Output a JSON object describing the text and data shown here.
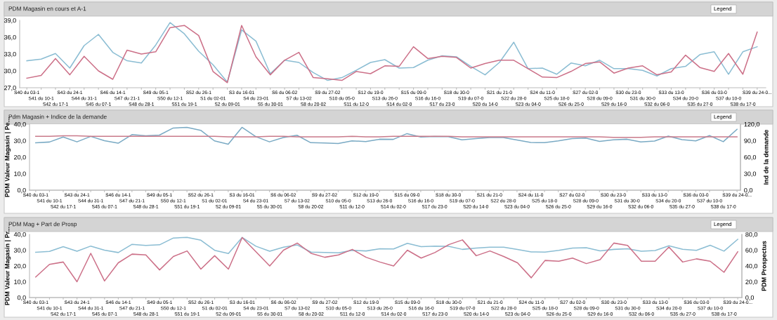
{
  "chart_data": [
    {
      "type": "line",
      "title": "PDM Magasin en cours et A-1",
      "annotations": [
        "Legend"
      ],
      "categories": [
        "S40 du 03-1",
        "S41 du 10-1",
        "S42 du 17-1",
        "S43 du 24-1",
        "S44 du 31-1",
        "S45 du 07-1",
        "S46 du 14-1",
        "S47 du 21-1",
        "S48 du 28-1",
        "S49 du 05-1",
        "S50 du 12-1",
        "S51 du 19-1",
        "S52 du 26-1",
        "S1 du 02-01",
        "S2 du 09-01",
        "S3 du 16-01",
        "S4 du 23-01",
        "S5 du 30-01",
        "S6 du 06-02",
        "S7 du 13-02",
        "S8 du 20-02",
        "S9 du 27-02",
        "S10 du 05-0",
        "S11 du 12-0",
        "S12 du 19-0",
        "S13 du 26-0",
        "S14 du 02-0",
        "S15 du 09-0",
        "S16 du 16-0",
        "S17 du 23-0",
        "S18 du 30-0",
        "S19 du 07-0",
        "S20 du 14-0",
        "S21 du 21-0",
        "S22 du 28-0",
        "S23 du 04-0",
        "S24 du 11-0",
        "S25 du 18-0",
        "S26 du 25-0",
        "S27 du 02-0",
        "S28 du 09-0",
        "S29 du 16-0",
        "S30 du 23-0",
        "S31 du 30-0",
        "S32 du 06-0",
        "S33 du 13-0",
        "S34 du 20-0",
        "S35 du 27-0",
        "S36 du 03-0",
        "S37 du 10-0",
        "S38 du 17-0",
        "S39 du 24-0..."
      ],
      "series": [
        {
          "color": "#8bbdd3",
          "values": [
            31.8,
            32.1,
            33.1,
            30.5,
            34.5,
            36.5,
            33.3,
            31.8,
            31.4,
            34.6,
            38.6,
            36.6,
            33.5,
            31.1,
            28.0,
            37.3,
            35.3,
            29.5,
            31.9,
            31.5,
            29.7,
            28.3,
            28.8,
            30.1,
            31.5,
            32.0,
            30.5,
            30.6,
            31.9,
            32.7,
            32.5,
            30.8,
            29.3,
            31.5,
            35.1,
            30.4,
            30.5,
            29.4,
            31.4,
            30.9,
            31.9,
            30.4,
            30.4,
            30.1,
            29.1,
            30.4,
            30.8,
            32.9,
            33.4,
            29.4,
            33.4,
            34.3
          ]
        },
        {
          "color": "#cc7088",
          "values": [
            28.7,
            29.2,
            32.2,
            29.3,
            32.6,
            30.0,
            28.5,
            33.7,
            33.0,
            33.4,
            37.7,
            38.1,
            36.3,
            29.9,
            27.9,
            38.1,
            32.5,
            29.3,
            31.9,
            33.3,
            28.8,
            28.6,
            28.3,
            29.9,
            29.5,
            30.9,
            30.8,
            34.3,
            32.2,
            32.6,
            32.4,
            30.5,
            31.3,
            31.9,
            31.9,
            30.4,
            28.9,
            28.8,
            29.9,
            31.3,
            31.6,
            29.6,
            30.5,
            30.9,
            29.3,
            29.8,
            32.8,
            30.6,
            29.9,
            33.1,
            29.4,
            36.9
          ]
        }
      ],
      "ylim": [
        27,
        39
      ],
      "yticks": [
        {
          "value": 27,
          "label": "27,0"
        },
        {
          "value": 30,
          "label": "30,0"
        },
        {
          "value": 33,
          "label": "33,0"
        },
        {
          "value": 36,
          "label": "36,0"
        },
        {
          "value": 39,
          "label": "39,0"
        }
      ]
    },
    {
      "type": "line",
      "title": "Pdm Magasin + Indice de la demande",
      "annotations": [
        "Legend"
      ],
      "ylabel": "PDM Valeur Magasin | Pe...",
      "y2label": "Ind de la demande",
      "categories": [
        "S40 du 03-1",
        "S41 du 10-1",
        "S42 du 17-1",
        "S43 du 24-1",
        "S44 du 31-1",
        "S45 du 07-1",
        "S46 du 14-1",
        "S47 du 21-1",
        "S48 du 28-1",
        "S49 du 05-1",
        "S50 du 12-1",
        "S51 du 19-1",
        "S52 du 26-1",
        "S1 du 02-01",
        "S2 du 09-01",
        "S3 du 16-01",
        "S4 du 23-01",
        "S5 du 30-01",
        "S6 du 06-02",
        "S7 du 13-02",
        "S8 du 20-02",
        "S9 du 27-02",
        "S10 du 05-0",
        "S11 du 12-0",
        "S12 du 19-0",
        "S13 du 26-0",
        "S14 du 02-0",
        "S15 du 09-0",
        "S16 du 16-0",
        "S17 du 23-0",
        "S18 du 30-0",
        "S19 du 07-0",
        "S20 du 14-0",
        "S21 du 21-0",
        "S22 du 28-0",
        "S23 du 04-0",
        "S24 du 11-0",
        "S25 du 18-0",
        "S26 du 25-0",
        "S27 du 02-0",
        "S28 du 09-0",
        "S29 du 16-0",
        "S30 du 23-0",
        "S31 du 30-0",
        "S32 du 06-0",
        "S33 du 13-0",
        "S34 du 20-0",
        "S35 du 27-0",
        "S36 du 03-0",
        "S37 du 10-0",
        "S38 du 17-0",
        "S39 du 24-0..."
      ],
      "series": [
        {
          "color": "#7aaac4",
          "values": [
            28.7,
            29.2,
            32.2,
            29.3,
            32.6,
            30.0,
            28.5,
            33.7,
            33.0,
            33.4,
            37.7,
            38.1,
            36.3,
            29.9,
            27.9,
            38.1,
            32.5,
            29.3,
            31.9,
            33.3,
            28.8,
            28.6,
            28.3,
            29.9,
            29.5,
            30.9,
            30.8,
            34.3,
            32.2,
            32.6,
            32.4,
            30.5,
            31.3,
            31.9,
            31.9,
            30.4,
            28.9,
            28.8,
            29.9,
            31.3,
            31.6,
            29.6,
            30.5,
            30.9,
            29.3,
            29.8,
            32.8,
            30.6,
            29.9,
            33.1,
            29.4,
            36.9
          ]
        },
        {
          "color": "#c97a8a",
          "axis": "y2",
          "values": [
            98,
            98,
            99,
            99,
            98,
            98,
            98,
            98,
            98,
            98,
            98,
            98,
            98,
            98,
            97,
            97,
            97,
            98,
            98,
            97,
            97,
            97,
            97,
            98,
            97,
            97,
            98,
            98,
            98,
            98,
            98,
            97,
            97,
            97,
            97,
            97,
            97,
            97,
            97,
            97,
            97,
            97,
            96,
            96,
            96,
            97,
            97,
            97,
            97,
            97,
            97,
            97
          ]
        }
      ],
      "ylim": [
        0,
        40
      ],
      "yticks": [
        {
          "value": 0,
          "label": "0,0"
        },
        {
          "value": 10,
          "label": "10,0"
        },
        {
          "value": 20,
          "label": "20,0"
        },
        {
          "value": 30,
          "label": "30,0"
        },
        {
          "value": 40,
          "label": "40,0"
        }
      ],
      "y2lim": [
        0,
        120
      ],
      "y2ticks": [
        {
          "value": 0,
          "label": "0,0"
        },
        {
          "value": 30,
          "label": "30,0"
        },
        {
          "value": 60,
          "label": "60,0"
        },
        {
          "value": 90,
          "label": "90,0"
        },
        {
          "value": 120,
          "label": "120,0"
        }
      ]
    },
    {
      "type": "line",
      "title": "PDM Mag + Part de Prosp",
      "annotations": [
        "Legend"
      ],
      "ylabel": "PDM Valeur Magasin | Pr...",
      "y2label": "PDM Prospectus",
      "categories": [
        "S40 du 03-1",
        "S41 du 10-1",
        "S42 du 17-1",
        "S43 du 24-1",
        "S44 du 31-1",
        "S45 du 07-1",
        "S46 du 14-1",
        "S47 du 21-1",
        "S48 du 28-1",
        "S49 du 05-1",
        "S50 du 12-1",
        "S51 du 19-1",
        "S52 du 26-1",
        "S1 du 02-01",
        "S2 du 09-01",
        "S3 du 16-01",
        "S4 du 23-01",
        "S5 du 30-01",
        "S6 du 06-02",
        "S7 du 13-02",
        "S8 du 20-02",
        "S9 du 27-02",
        "S10 du 05-0",
        "S11 du 12-0",
        "S12 du 19-0",
        "S13 du 26-0",
        "S14 du 02-0",
        "S15 du 09-0",
        "S16 du 16-0",
        "S17 du 23-0",
        "S18 du 30-0",
        "S19 du 07-0",
        "S20 du 14-0",
        "S21 du 21-0",
        "S22 du 28-0",
        "S23 du 04-0",
        "S24 du 11-0",
        "S25 du 18-0",
        "S26 du 25-0",
        "S27 du 02-0",
        "S28 du 09-0",
        "S29 du 16-0",
        "S30 du 23-0",
        "S31 du 30-0",
        "S32 du 06-0",
        "S33 du 13-0",
        "S34 du 20-0",
        "S35 du 27-0",
        "S36 du 03-0",
        "S37 du 10-0",
        "S38 du 17-0",
        "S39 du 24-0..."
      ],
      "series": [
        {
          "color": "#8bbdd3",
          "values": [
            28.7,
            29.2,
            32.2,
            29.3,
            32.6,
            30.0,
            28.5,
            33.7,
            33.0,
            33.4,
            37.7,
            38.1,
            36.3,
            29.9,
            27.9,
            38.1,
            32.5,
            29.3,
            31.9,
            33.3,
            28.8,
            28.6,
            28.3,
            29.9,
            29.5,
            30.9,
            30.8,
            34.3,
            32.2,
            32.6,
            32.4,
            30.5,
            31.3,
            31.9,
            31.9,
            30.4,
            28.9,
            28.8,
            29.9,
            31.3,
            31.6,
            29.6,
            30.5,
            30.9,
            29.3,
            29.8,
            32.8,
            30.6,
            29.9,
            33.1,
            29.4,
            36.9
          ]
        },
        {
          "color": "#cc7088",
          "axis": "y2",
          "values": [
            26,
            42,
            45,
            20,
            56,
            21,
            44,
            55,
            54,
            35,
            52,
            59,
            36,
            53,
            36,
            76,
            58,
            40,
            60,
            69,
            56,
            51,
            54,
            61,
            51,
            45,
            40,
            60,
            50,
            57,
            67,
            73,
            53,
            59,
            52,
            44,
            25,
            47,
            46,
            50,
            43,
            48,
            69,
            66,
            46,
            46,
            64,
            45,
            49,
            46,
            32,
            58
          ]
        }
      ],
      "ylim": [
        0,
        40
      ],
      "yticks": [
        {
          "value": 0,
          "label": "0,0"
        },
        {
          "value": 10,
          "label": "10,0"
        },
        {
          "value": 20,
          "label": "20,0"
        },
        {
          "value": 30,
          "label": "30,0"
        },
        {
          "value": 40,
          "label": "40,0"
        }
      ],
      "y2lim": [
        0,
        80
      ],
      "y2ticks": [
        {
          "value": 0,
          "label": "0,0"
        },
        {
          "value": 20,
          "label": "20,0"
        },
        {
          "value": 40,
          "label": "40,0"
        },
        {
          "value": 60,
          "label": "60,0"
        },
        {
          "value": 80,
          "label": "80,0"
        }
      ]
    }
  ]
}
